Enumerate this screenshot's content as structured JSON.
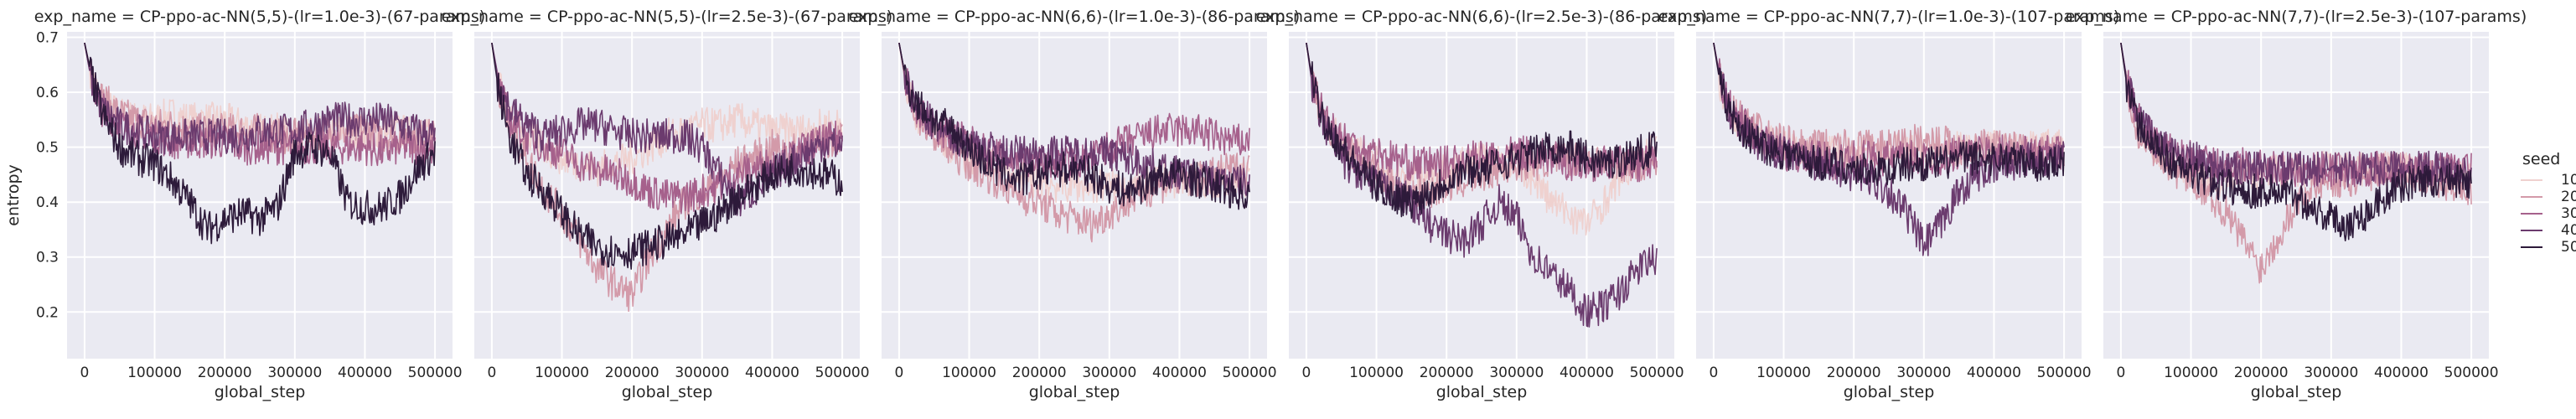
{
  "chart_data": {
    "type": "line",
    "facet_prefix": "exp_name = ",
    "xlabel": "global_step",
    "ylabel": "entropy",
    "xlim": [
      -25000,
      525000
    ],
    "ylim": [
      0.115,
      0.71
    ],
    "x_ticks": [
      0,
      100000,
      200000,
      300000,
      400000,
      500000
    ],
    "x_tick_labels": [
      "0",
      "100000",
      "200000",
      "300000",
      "400000",
      "500000"
    ],
    "y_ticks": [
      0.2,
      0.3,
      0.4,
      0.5,
      0.6,
      0.7
    ],
    "y_tick_labels": [
      "0.2",
      "0.3",
      "0.4",
      "0.5",
      "0.6",
      "0.7"
    ],
    "grid": true,
    "legend": {
      "title": "seed",
      "placement": "right",
      "entries": [
        "10",
        "20",
        "30",
        "40",
        "50"
      ]
    },
    "series_colors": [
      "#efd1cf",
      "#d39aa9",
      "#a6618c",
      "#6b3b6e",
      "#2d1a3a"
    ],
    "x": [
      0,
      10000,
      25000,
      50000,
      75000,
      100000,
      125000,
      150000,
      175000,
      200000,
      225000,
      250000,
      275000,
      300000,
      325000,
      350000,
      375000,
      400000,
      425000,
      450000,
      475000,
      500000
    ],
    "panels": [
      {
        "title": "CP-ppo-ac-NN(5,5)-(lr=1.0e-3)-(67-params)",
        "series": [
          {
            "name": "10",
            "values": [
              0.69,
              0.63,
              0.58,
              0.56,
              0.55,
              0.55,
              0.56,
              0.55,
              0.55,
              0.55,
              0.54,
              0.53,
              0.53,
              0.52,
              0.52,
              0.53,
              0.53,
              0.53,
              0.53,
              0.53,
              0.52,
              0.52
            ]
          },
          {
            "name": "20",
            "values": [
              0.69,
              0.63,
              0.59,
              0.56,
              0.55,
              0.54,
              0.54,
              0.53,
              0.53,
              0.53,
              0.53,
              0.53,
              0.52,
              0.52,
              0.52,
              0.53,
              0.53,
              0.53,
              0.52,
              0.52,
              0.52,
              0.52
            ]
          },
          {
            "name": "30",
            "values": [
              0.69,
              0.62,
              0.57,
              0.54,
              0.53,
              0.52,
              0.51,
              0.51,
              0.51,
              0.51,
              0.5,
              0.5,
              0.5,
              0.5,
              0.5,
              0.5,
              0.5,
              0.5,
              0.49,
              0.5,
              0.5,
              0.49
            ]
          },
          {
            "name": "40",
            "values": [
              0.69,
              0.62,
              0.57,
              0.54,
              0.53,
              0.52,
              0.52,
              0.52,
              0.52,
              0.52,
              0.52,
              0.53,
              0.53,
              0.53,
              0.54,
              0.55,
              0.55,
              0.55,
              0.55,
              0.54,
              0.53,
              0.52
            ]
          },
          {
            "name": "50",
            "values": [
              0.69,
              0.63,
              0.56,
              0.5,
              0.48,
              0.47,
              0.44,
              0.4,
              0.35,
              0.37,
              0.38,
              0.37,
              0.39,
              0.49,
              0.5,
              0.49,
              0.4,
              0.39,
              0.39,
              0.41,
              0.46,
              0.49
            ]
          }
        ]
      },
      {
        "title": "CP-ppo-ac-NN(5,5)-(lr=2.5e-3)-(67-params)",
        "series": [
          {
            "name": "10",
            "values": [
              0.69,
              0.62,
              0.55,
              0.52,
              0.5,
              0.48,
              0.47,
              0.46,
              0.47,
              0.48,
              0.5,
              0.52,
              0.53,
              0.54,
              0.54,
              0.55,
              0.54,
              0.53,
              0.53,
              0.53,
              0.54,
              0.54
            ]
          },
          {
            "name": "20",
            "values": [
              0.69,
              0.61,
              0.53,
              0.48,
              0.42,
              0.38,
              0.33,
              0.28,
              0.25,
              0.23,
              0.3,
              0.35,
              0.4,
              0.42,
              0.44,
              0.47,
              0.48,
              0.5,
              0.49,
              0.5,
              0.51,
              0.52
            ]
          },
          {
            "name": "30",
            "values": [
              0.69,
              0.61,
              0.55,
              0.52,
              0.5,
              0.49,
              0.47,
              0.46,
              0.45,
              0.44,
              0.42,
              0.41,
              0.41,
              0.42,
              0.43,
              0.45,
              0.46,
              0.47,
              0.48,
              0.5,
              0.51,
              0.52
            ]
          },
          {
            "name": "40",
            "values": [
              0.69,
              0.62,
              0.57,
              0.54,
              0.52,
              0.53,
              0.54,
              0.54,
              0.53,
              0.52,
              0.52,
              0.52,
              0.52,
              0.5,
              0.45,
              0.4,
              0.42,
              0.45,
              0.47,
              0.49,
              0.51,
              0.5
            ]
          },
          {
            "name": "50",
            "values": [
              0.69,
              0.6,
              0.52,
              0.45,
              0.42,
              0.38,
              0.34,
              0.32,
              0.31,
              0.31,
              0.32,
              0.33,
              0.34,
              0.36,
              0.38,
              0.41,
              0.43,
              0.45,
              0.46,
              0.46,
              0.45,
              0.44
            ]
          }
        ]
      },
      {
        "title": "CP-ppo-ac-NN(6,6)-(lr=1.0e-3)-(86-params)",
        "series": [
          {
            "name": "10",
            "values": [
              0.69,
              0.61,
              0.56,
              0.53,
              0.5,
              0.48,
              0.47,
              0.45,
              0.44,
              0.44,
              0.43,
              0.43,
              0.43,
              0.43,
              0.43,
              0.43,
              0.44,
              0.44,
              0.44,
              0.44,
              0.44,
              0.44
            ]
          },
          {
            "name": "20",
            "values": [
              0.69,
              0.61,
              0.56,
              0.52,
              0.49,
              0.47,
              0.45,
              0.43,
              0.41,
              0.4,
              0.38,
              0.37,
              0.36,
              0.38,
              0.4,
              0.42,
              0.43,
              0.44,
              0.44,
              0.45,
              0.46,
              0.46
            ]
          },
          {
            "name": "30",
            "values": [
              0.69,
              0.62,
              0.57,
              0.54,
              0.52,
              0.51,
              0.49,
              0.48,
              0.47,
              0.47,
              0.47,
              0.47,
              0.48,
              0.5,
              0.51,
              0.52,
              0.53,
              0.53,
              0.53,
              0.52,
              0.51,
              0.51
            ]
          },
          {
            "name": "40",
            "values": [
              0.69,
              0.62,
              0.57,
              0.54,
              0.52,
              0.51,
              0.5,
              0.49,
              0.49,
              0.49,
              0.49,
              0.49,
              0.49,
              0.49,
              0.48,
              0.47,
              0.46,
              0.45,
              0.45,
              0.44,
              0.44,
              0.43
            ]
          },
          {
            "name": "50",
            "values": [
              0.69,
              0.62,
              0.58,
              0.55,
              0.53,
              0.5,
              0.47,
              0.45,
              0.44,
              0.45,
              0.46,
              0.46,
              0.45,
              0.43,
              0.42,
              0.43,
              0.45,
              0.45,
              0.44,
              0.43,
              0.42,
              0.41
            ]
          }
        ]
      },
      {
        "title": "CP-ppo-ac-NN(6,6)-(lr=2.5e-3)-(86-params)",
        "series": [
          {
            "name": "10",
            "values": [
              0.69,
              0.61,
              0.55,
              0.51,
              0.49,
              0.47,
              0.45,
              0.45,
              0.45,
              0.46,
              0.47,
              0.48,
              0.48,
              0.47,
              0.44,
              0.4,
              0.38,
              0.36,
              0.4,
              0.45,
              0.48,
              0.5
            ]
          },
          {
            "name": "20",
            "values": [
              0.69,
              0.61,
              0.55,
              0.51,
              0.48,
              0.45,
              0.43,
              0.42,
              0.42,
              0.43,
              0.44,
              0.45,
              0.46,
              0.47,
              0.47,
              0.48,
              0.48,
              0.48,
              0.47,
              0.47,
              0.47,
              0.47
            ]
          },
          {
            "name": "30",
            "values": [
              0.69,
              0.61,
              0.56,
              0.52,
              0.5,
              0.49,
              0.48,
              0.47,
              0.47,
              0.47,
              0.48,
              0.48,
              0.48,
              0.49,
              0.49,
              0.48,
              0.47,
              0.47,
              0.47,
              0.47,
              0.47,
              0.47
            ]
          },
          {
            "name": "40",
            "values": [
              0.69,
              0.6,
              0.54,
              0.48,
              0.45,
              0.43,
              0.42,
              0.4,
              0.36,
              0.34,
              0.33,
              0.36,
              0.4,
              0.37,
              0.3,
              0.27,
              0.24,
              0.2,
              0.21,
              0.24,
              0.28,
              0.3
            ]
          },
          {
            "name": "50",
            "values": [
              0.69,
              0.61,
              0.55,
              0.5,
              0.46,
              0.43,
              0.41,
              0.4,
              0.42,
              0.44,
              0.46,
              0.46,
              0.47,
              0.48,
              0.49,
              0.5,
              0.5,
              0.48,
              0.47,
              0.48,
              0.49,
              0.5
            ]
          }
        ]
      },
      {
        "title": "CP-ppo-ac-NN(7,7)-(lr=1.0e-3)-(107-params)",
        "series": [
          {
            "name": "10",
            "values": [
              0.69,
              0.61,
              0.56,
              0.53,
              0.51,
              0.5,
              0.49,
              0.49,
              0.49,
              0.49,
              0.49,
              0.49,
              0.49,
              0.49,
              0.49,
              0.5,
              0.5,
              0.5,
              0.49,
              0.5,
              0.5,
              0.5
            ]
          },
          {
            "name": "20",
            "values": [
              0.69,
              0.62,
              0.57,
              0.54,
              0.52,
              0.51,
              0.5,
              0.5,
              0.5,
              0.5,
              0.5,
              0.5,
              0.51,
              0.51,
              0.51,
              0.5,
              0.5,
              0.5,
              0.5,
              0.49,
              0.49,
              0.49
            ]
          },
          {
            "name": "30",
            "values": [
              0.69,
              0.62,
              0.57,
              0.53,
              0.51,
              0.49,
              0.48,
              0.48,
              0.47,
              0.48,
              0.48,
              0.48,
              0.48,
              0.48,
              0.48,
              0.49,
              0.49,
              0.49,
              0.49,
              0.49,
              0.49,
              0.49
            ]
          },
          {
            "name": "40",
            "values": [
              0.69,
              0.62,
              0.56,
              0.52,
              0.5,
              0.49,
              0.48,
              0.47,
              0.46,
              0.45,
              0.44,
              0.42,
              0.38,
              0.32,
              0.36,
              0.42,
              0.45,
              0.46,
              0.47,
              0.48,
              0.48,
              0.48
            ]
          },
          {
            "name": "50",
            "values": [
              0.69,
              0.61,
              0.56,
              0.52,
              0.5,
              0.49,
              0.48,
              0.47,
              0.47,
              0.46,
              0.46,
              0.46,
              0.47,
              0.47,
              0.47,
              0.48,
              0.48,
              0.48,
              0.48,
              0.47,
              0.47,
              0.48
            ]
          }
        ]
      },
      {
        "title": "CP-ppo-ac-NN(7,7)-(lr=2.5e-3)-(107-params)",
        "series": [
          {
            "name": "10",
            "values": [
              0.69,
              0.6,
              0.54,
              0.5,
              0.47,
              0.45,
              0.44,
              0.44,
              0.45,
              0.45,
              0.46,
              0.46,
              0.46,
              0.46,
              0.46,
              0.46,
              0.46,
              0.46,
              0.45,
              0.45,
              0.45,
              0.45
            ]
          },
          {
            "name": "20",
            "values": [
              0.69,
              0.6,
              0.53,
              0.49,
              0.46,
              0.44,
              0.42,
              0.38,
              0.33,
              0.28,
              0.34,
              0.4,
              0.43,
              0.44,
              0.44,
              0.45,
              0.46,
              0.46,
              0.45,
              0.44,
              0.43,
              0.42
            ]
          },
          {
            "name": "30",
            "values": [
              0.69,
              0.61,
              0.55,
              0.51,
              0.49,
              0.48,
              0.47,
              0.47,
              0.47,
              0.47,
              0.46,
              0.46,
              0.46,
              0.46,
              0.46,
              0.46,
              0.46,
              0.46,
              0.46,
              0.46,
              0.46,
              0.46
            ]
          },
          {
            "name": "40",
            "values": [
              0.69,
              0.61,
              0.55,
              0.51,
              0.49,
              0.48,
              0.47,
              0.46,
              0.46,
              0.46,
              0.46,
              0.46,
              0.46,
              0.46,
              0.46,
              0.46,
              0.46,
              0.46,
              0.46,
              0.46,
              0.45,
              0.45
            ]
          },
          {
            "name": "50",
            "values": [
              0.69,
              0.6,
              0.54,
              0.5,
              0.47,
              0.45,
              0.44,
              0.43,
              0.42,
              0.42,
              0.42,
              0.41,
              0.39,
              0.37,
              0.36,
              0.38,
              0.41,
              0.43,
              0.44,
              0.44,
              0.44,
              0.43
            ]
          }
        ]
      }
    ]
  }
}
